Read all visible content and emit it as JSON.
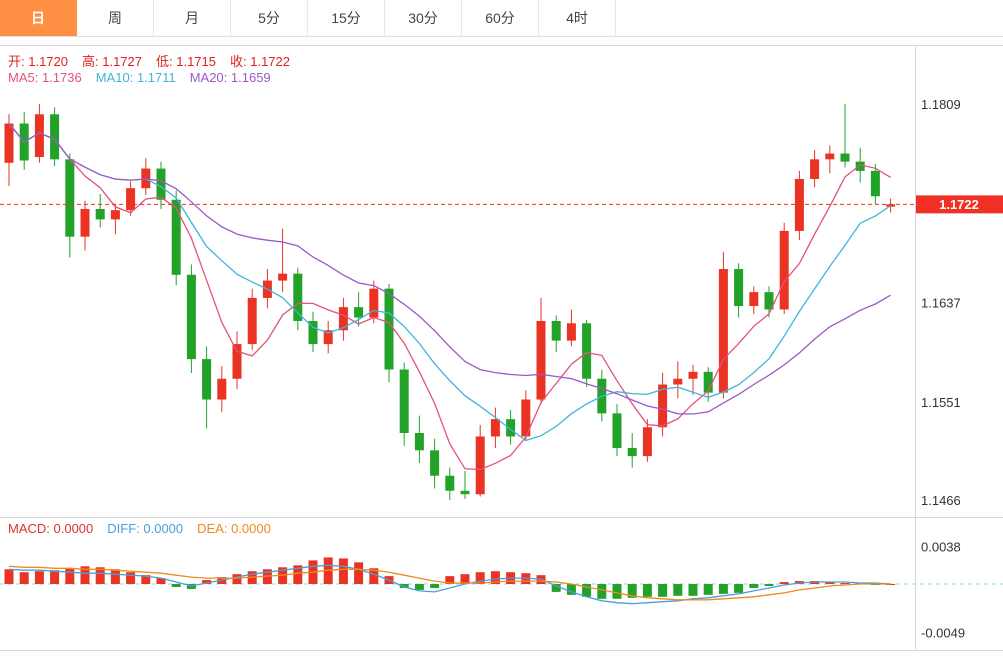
{
  "colors": {
    "up": "#ea3323",
    "down": "#22a228",
    "ma5": "#e5517e",
    "ma10": "#3fb6d8",
    "ma20": "#9b59c8",
    "macd": "#e03131",
    "diff": "#4a9fd8",
    "dea": "#ef8b1f",
    "ohlc_text": "#e02020",
    "price_line": "#f03024",
    "price_tag_bg": "#f03024",
    "zero_line": "#8ed6e8",
    "axis_text": "#333333",
    "grid": "#d6d6d6",
    "tab_active_bg": "#ff8f43"
  },
  "tabs": [
    {
      "name": "tab-day",
      "label": "日",
      "active": true
    },
    {
      "name": "tab-week",
      "label": "周",
      "active": false
    },
    {
      "name": "tab-month",
      "label": "月",
      "active": false
    },
    {
      "name": "tab-5min",
      "label": "5分",
      "active": false
    },
    {
      "name": "tab-15min",
      "label": "15分",
      "active": false
    },
    {
      "name": "tab-30min",
      "label": "30分",
      "active": false
    },
    {
      "name": "tab-60min",
      "label": "60分",
      "active": false
    },
    {
      "name": "tab-4hour",
      "label": "4时",
      "active": false
    }
  ],
  "ohlc": {
    "items": [
      {
        "name": "open",
        "label": "开:",
        "value": "1.1720"
      },
      {
        "name": "high",
        "label": "高:",
        "value": "1.1727"
      },
      {
        "name": "low",
        "label": "低:",
        "value": "1.1715"
      },
      {
        "name": "close",
        "label": "收:",
        "value": "1.1722"
      }
    ]
  },
  "ma_info": [
    {
      "name": "ma5",
      "label": "MA5:",
      "value": "1.1736"
    },
    {
      "name": "ma10",
      "label": "MA10:",
      "value": "1.1711"
    },
    {
      "name": "ma20",
      "label": "MA20:",
      "value": "1.1659"
    }
  ],
  "macd_info": [
    {
      "name": "macd",
      "label": "MACD:",
      "value": "0.0000"
    },
    {
      "name": "diff",
      "label": "DIFF:",
      "value": "0.0000"
    },
    {
      "name": "dea",
      "label": "DEA:",
      "value": "0.0000"
    }
  ],
  "y_axis": {
    "labels": [
      {
        "text": "1.1809",
        "price": 1.1809
      },
      {
        "text": "1.1637",
        "price": 1.1637
      },
      {
        "text": "1.1551",
        "price": 1.1551
      },
      {
        "text": "1.1466",
        "price": 1.1466
      }
    ]
  },
  "price_tag": {
    "text": "1.1722",
    "price": 1.1722
  },
  "macd_axis": [
    {
      "text": "0.0038",
      "value": 0.0038
    },
    {
      "text": "-0.0049",
      "value": -0.0049
    }
  ],
  "chart_data": [
    {
      "type": "candlestick",
      "title": "Daily candlestick with MA5/MA10/MA20",
      "ylim": [
        1.1453,
        1.186
      ],
      "y_ticks": [
        1.1809,
        1.1722,
        1.1637,
        1.1551,
        1.1466
      ],
      "ma_periods": [
        5,
        10,
        20
      ],
      "last_price": 1.1722,
      "ohlc": [
        [
          1.1758,
          1.18,
          1.1738,
          1.1792
        ],
        [
          1.1792,
          1.1802,
          1.1752,
          1.176
        ],
        [
          1.1763,
          1.1809,
          1.1758,
          1.18
        ],
        [
          1.18,
          1.1806,
          1.1755,
          1.1761
        ],
        [
          1.1761,
          1.1766,
          1.1676,
          1.1694
        ],
        [
          1.1694,
          1.1725,
          1.1682,
          1.1718
        ],
        [
          1.1718,
          1.1731,
          1.1702,
          1.1709
        ],
        [
          1.1709,
          1.1722,
          1.1696,
          1.1717
        ],
        [
          1.1717,
          1.1742,
          1.1712,
          1.1736
        ],
        [
          1.1736,
          1.1762,
          1.173,
          1.1753
        ],
        [
          1.1753,
          1.1759,
          1.1718,
          1.1726
        ],
        [
          1.1726,
          1.1734,
          1.1652,
          1.1661
        ],
        [
          1.1661,
          1.167,
          1.1576,
          1.1588
        ],
        [
          1.1588,
          1.1599,
          1.1528,
          1.1553
        ],
        [
          1.1553,
          1.1582,
          1.1542,
          1.1571
        ],
        [
          1.1571,
          1.1612,
          1.1562,
          1.1601
        ],
        [
          1.1601,
          1.1649,
          1.1596,
          1.1641
        ],
        [
          1.1641,
          1.1666,
          1.1632,
          1.1656
        ],
        [
          1.1656,
          1.1701,
          1.1646,
          1.1662
        ],
        [
          1.1662,
          1.1667,
          1.1613,
          1.1621
        ],
        [
          1.1621,
          1.1629,
          1.1594,
          1.1601
        ],
        [
          1.1601,
          1.1621,
          1.1593,
          1.1613
        ],
        [
          1.1613,
          1.1641,
          1.1604,
          1.1633
        ],
        [
          1.1633,
          1.1646,
          1.1616,
          1.1624
        ],
        [
          1.1624,
          1.1656,
          1.1619,
          1.1649
        ],
        [
          1.1649,
          1.1653,
          1.1568,
          1.1579
        ],
        [
          1.1579,
          1.1585,
          1.1513,
          1.1524
        ],
        [
          1.1524,
          1.1539,
          1.1498,
          1.1509
        ],
        [
          1.1509,
          1.1519,
          1.1476,
          1.1487
        ],
        [
          1.1487,
          1.1494,
          1.1466,
          1.1474
        ],
        [
          1.1474,
          1.1491,
          1.1467,
          1.1471
        ],
        [
          1.1471,
          1.1531,
          1.1469,
          1.1521
        ],
        [
          1.1521,
          1.1546,
          1.1511,
          1.1536
        ],
        [
          1.1536,
          1.1544,
          1.1514,
          1.1521
        ],
        [
          1.1521,
          1.1561,
          1.1517,
          1.1553
        ],
        [
          1.1553,
          1.1641,
          1.1549,
          1.1621
        ],
        [
          1.1621,
          1.1626,
          1.1594,
          1.1604
        ],
        [
          1.1604,
          1.1631,
          1.1599,
          1.1619
        ],
        [
          1.1619,
          1.1622,
          1.1564,
          1.1571
        ],
        [
          1.1571,
          1.1579,
          1.1534,
          1.1541
        ],
        [
          1.1541,
          1.1549,
          1.1504,
          1.1511
        ],
        [
          1.1511,
          1.1524,
          1.1494,
          1.1504
        ],
        [
          1.1504,
          1.1536,
          1.1499,
          1.1529
        ],
        [
          1.1529,
          1.1576,
          1.1521,
          1.1566
        ],
        [
          1.1566,
          1.1586,
          1.1554,
          1.1571
        ],
        [
          1.1571,
          1.1583,
          1.1557,
          1.1577
        ],
        [
          1.1577,
          1.1581,
          1.1551,
          1.1559
        ],
        [
          1.1559,
          1.1681,
          1.1554,
          1.1666
        ],
        [
          1.1666,
          1.1671,
          1.1624,
          1.1634
        ],
        [
          1.1634,
          1.1651,
          1.1627,
          1.1646
        ],
        [
          1.1646,
          1.1651,
          1.1624,
          1.1631
        ],
        [
          1.1631,
          1.1706,
          1.1627,
          1.1699
        ],
        [
          1.1699,
          1.1751,
          1.1691,
          1.1744
        ],
        [
          1.1744,
          1.1769,
          1.1737,
          1.1761
        ],
        [
          1.1761,
          1.1773,
          1.1749,
          1.1766
        ],
        [
          1.1766,
          1.1809,
          1.1754,
          1.1759
        ],
        [
          1.1759,
          1.1771,
          1.1741,
          1.1751
        ],
        [
          1.1751,
          1.1757,
          1.1722,
          1.1729
        ],
        [
          1.172,
          1.1727,
          1.1715,
          1.1722
        ]
      ]
    },
    {
      "type": "macd",
      "title": "MACD (hist / DIFF / DEA)",
      "ylim": [
        -0.0065,
        0.0063
      ],
      "y_ticks": [
        0.0038,
        -0.0049
      ],
      "hist": [
        0.0015,
        0.0012,
        0.0013,
        0.0014,
        0.0016,
        0.0018,
        0.0017,
        0.0015,
        0.0012,
        0.0009,
        0.0006,
        -0.0003,
        -0.0005,
        0.0004,
        0.0007,
        0.001,
        0.0013,
        0.0015,
        0.0017,
        0.0019,
        0.0024,
        0.0027,
        0.0026,
        0.0022,
        0.0016,
        0.0008,
        -0.0004,
        -0.0006,
        -0.0004,
        0.0008,
        0.001,
        0.0012,
        0.0013,
        0.0012,
        0.0011,
        0.0009,
        -0.0008,
        -0.0011,
        -0.0013,
        -0.0015,
        -0.0015,
        -0.0014,
        -0.0013,
        -0.0013,
        -0.0012,
        -0.0012,
        -0.0011,
        -0.001,
        -0.0009,
        -0.0004,
        -0.0002,
        0.0002,
        0.0003,
        0.0003,
        0.0002,
        0.0001,
        0.0001,
        -0.0001,
        0.0
      ],
      "diff": [
        0.0015,
        0.0014,
        0.0014,
        0.0013,
        0.0012,
        0.0011,
        0.0011,
        0.001,
        0.0009,
        0.0008,
        0.0006,
        0.0002,
        -0.0002,
        0.0001,
        0.0004,
        0.0007,
        0.001,
        0.0012,
        0.0014,
        0.0016,
        0.0018,
        0.0019,
        0.0018,
        0.0015,
        0.001,
        0.0004,
        -0.0003,
        -0.0007,
        -0.0008,
        -0.0004,
        0.0,
        0.0003,
        0.0005,
        0.0006,
        0.0006,
        0.0005,
        -0.0002,
        -0.0008,
        -0.0013,
        -0.0017,
        -0.0019,
        -0.002,
        -0.0019,
        -0.0018,
        -0.0017,
        -0.0015,
        -0.0014,
        -0.0012,
        -0.001,
        -0.0007,
        -0.0004,
        -0.0001,
        0.0001,
        0.0002,
        0.0002,
        0.0002,
        0.0001,
        0.0001,
        0.0
      ],
      "dea": [
        0.0018,
        0.0017,
        0.0017,
        0.0016,
        0.0016,
        0.0015,
        0.0015,
        0.0014,
        0.0013,
        0.0012,
        0.0011,
        0.0009,
        0.0007,
        0.0006,
        0.0006,
        0.0006,
        0.0007,
        0.0008,
        0.0009,
        0.0011,
        0.0012,
        0.0014,
        0.0015,
        0.0015,
        0.0014,
        0.0012,
        0.0009,
        0.0006,
        0.0003,
        0.0001,
        0.0001,
        0.0001,
        0.0002,
        0.0003,
        0.0003,
        0.0003,
        0.0002,
        0.0,
        -0.0003,
        -0.0006,
        -0.0009,
        -0.0012,
        -0.0014,
        -0.0015,
        -0.0016,
        -0.0016,
        -0.0016,
        -0.0015,
        -0.0014,
        -0.0013,
        -0.0011,
        -0.0009,
        -0.0006,
        -0.0004,
        -0.0002,
        -0.0001,
        0.0,
        0.0,
        0.0
      ]
    }
  ]
}
